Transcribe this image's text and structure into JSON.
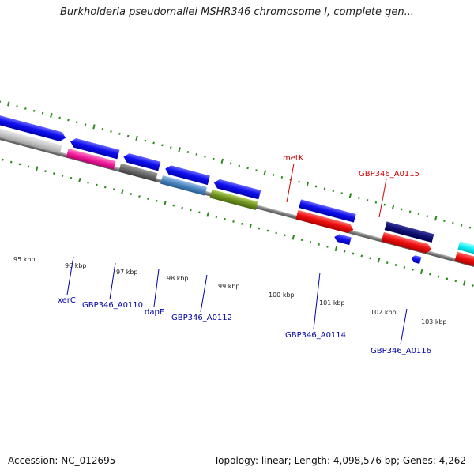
{
  "title": "Burkholderia pseudomallei MSHR346 chromosome I, complete gen...",
  "footer": {
    "accession": "Accession: NC_012695",
    "summary": "Topology: linear; Length: 4,098,576 bp; Genes: 4,262"
  },
  "colors": {
    "axis": "#888888",
    "tick": "#2a8a1a",
    "label_red": "#cc0000",
    "label_blue": "#0000aa"
  },
  "ticks": [
    "95 kbp",
    "96 kbp",
    "97 kbp",
    "98 kbp",
    "99 kbp",
    "100 kbp",
    "101 kbp",
    "102 kbp",
    "103 kbp"
  ],
  "gene_labels": [
    {
      "text": "metK",
      "color": "red"
    },
    {
      "text": "GBP346_A0115",
      "color": "red"
    },
    {
      "text": "xerC",
      "color": "blue"
    },
    {
      "text": "GBP346_A0110",
      "color": "blue"
    },
    {
      "text": "dapF",
      "color": "blue"
    },
    {
      "text": "GBP346_A0112",
      "color": "blue"
    },
    {
      "text": "GBP346_A0114",
      "color": "blue"
    },
    {
      "text": "GBP346_A0116",
      "color": "blue"
    }
  ]
}
